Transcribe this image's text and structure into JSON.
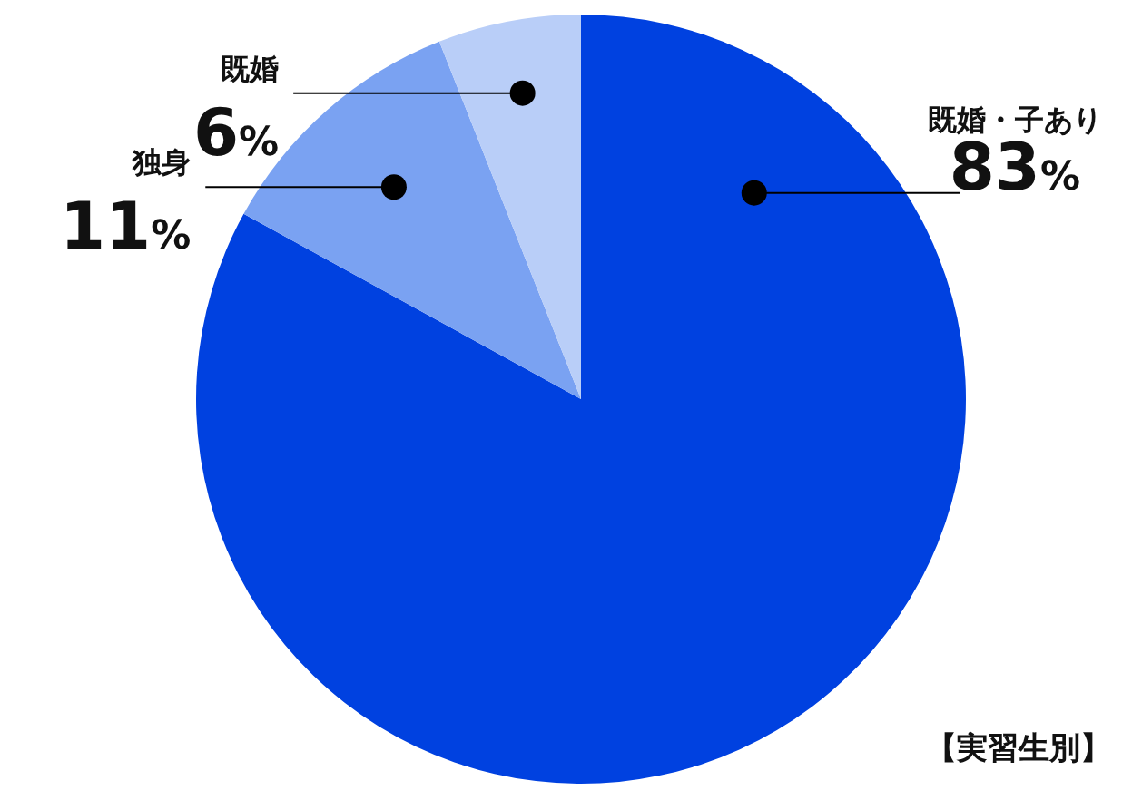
{
  "chart_data": {
    "type": "pie",
    "categories": [
      "既婚・子あり",
      "独身",
      "既婚"
    ],
    "values": [
      83,
      11,
      6
    ],
    "value_labels": [
      "83%",
      "11%",
      "6%"
    ],
    "colors": [
      "#0041e0",
      "#7aa2f2",
      "#b9cef8"
    ],
    "annotations": [
      "【実習生別】"
    ]
  }
}
